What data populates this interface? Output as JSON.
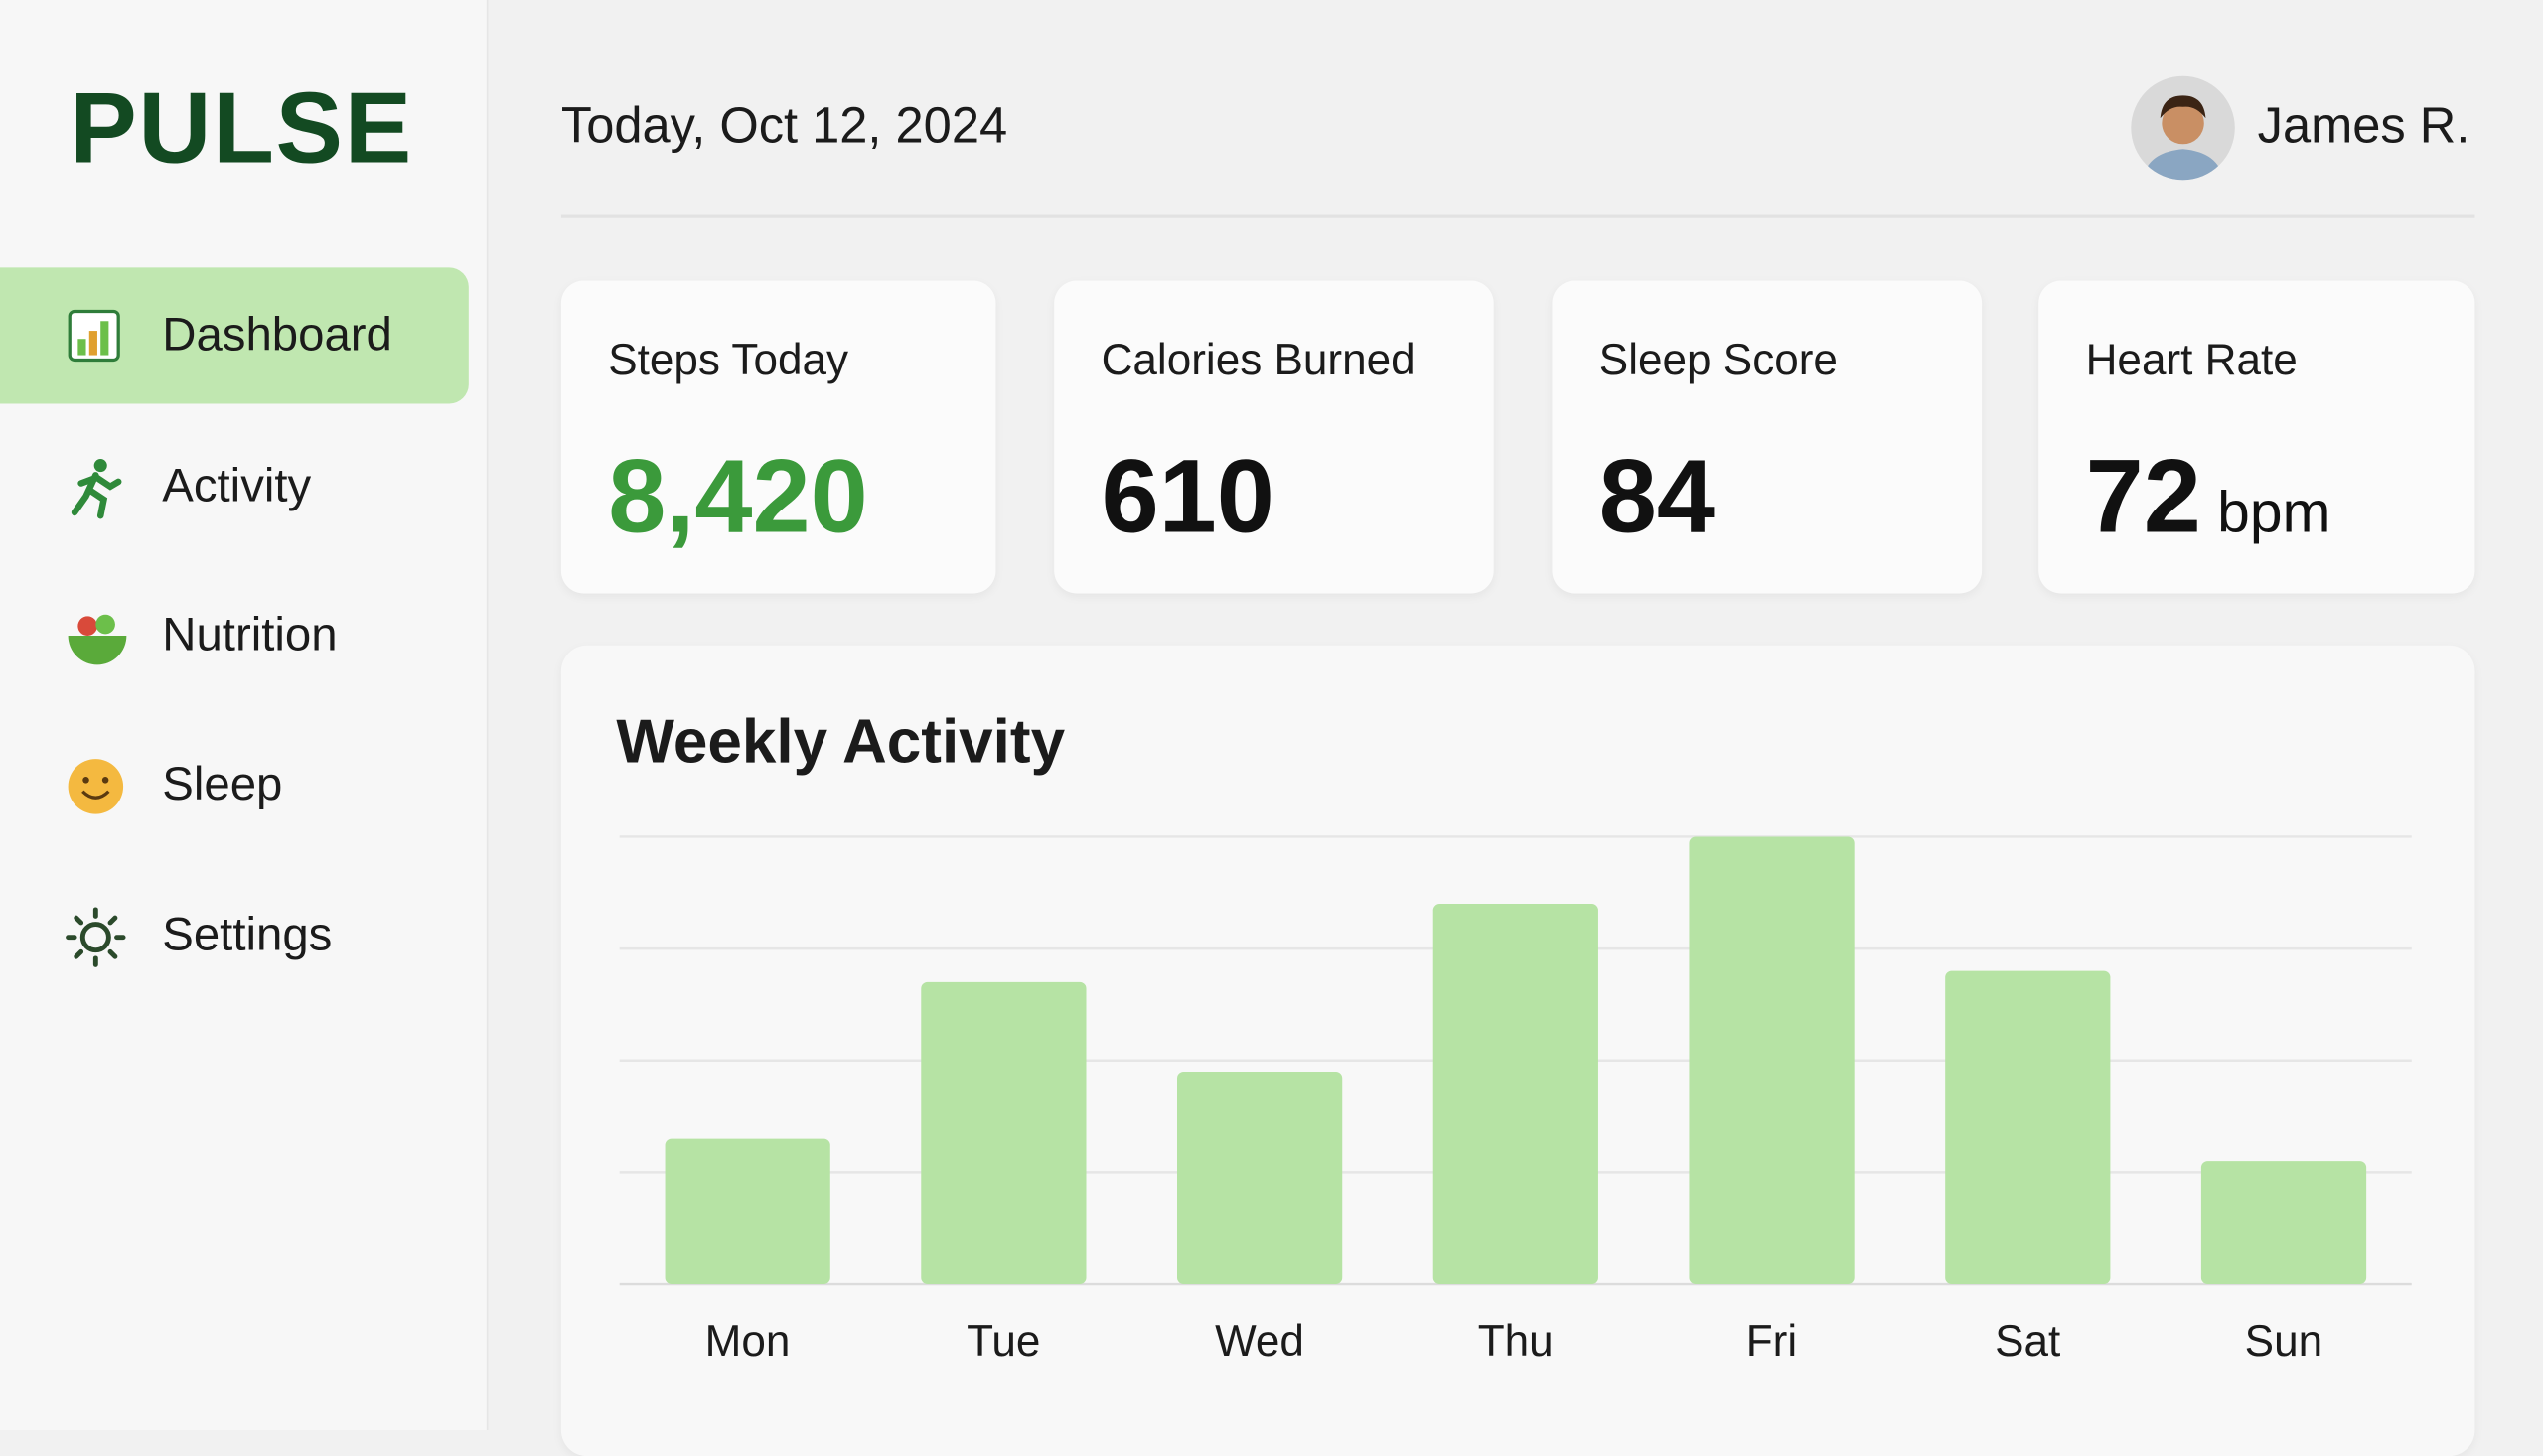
{
  "sidebar": {
    "logo": "PULSE",
    "nav": [
      {
        "label": "Dashboard",
        "active": true
      },
      {
        "label": "Activity",
        "active": false
      },
      {
        "label": "Nutrition",
        "active": false
      },
      {
        "label": "Sleep",
        "active": false
      },
      {
        "label": "Settings",
        "active": false
      }
    ]
  },
  "header": {
    "date": "Today, Oct 12, 2024",
    "user": "James R."
  },
  "cards": [
    {
      "title": "Steps Today",
      "value": "8,420"
    },
    {
      "title": "Calories Burned",
      "value": "610"
    },
    {
      "title": "Sleep Score",
      "value": "84"
    },
    {
      "title": "Heart Rate",
      "value": "72",
      "unit": "bpm"
    }
  ],
  "chart_data": {
    "type": "bar",
    "title": "Weekly Activity",
    "categories": [
      "Mon",
      "Tue",
      "Wed",
      "Thu",
      "Fri",
      "Sat",
      "Sun"
    ],
    "values": [
      1.3,
      2.7,
      1.9,
      3.4,
      4.0,
      2.8,
      1.1
    ],
    "color": "#b6e3a4",
    "ylim": [
      0,
      4
    ],
    "gridlines": [
      0,
      1,
      2,
      3,
      4
    ]
  }
}
